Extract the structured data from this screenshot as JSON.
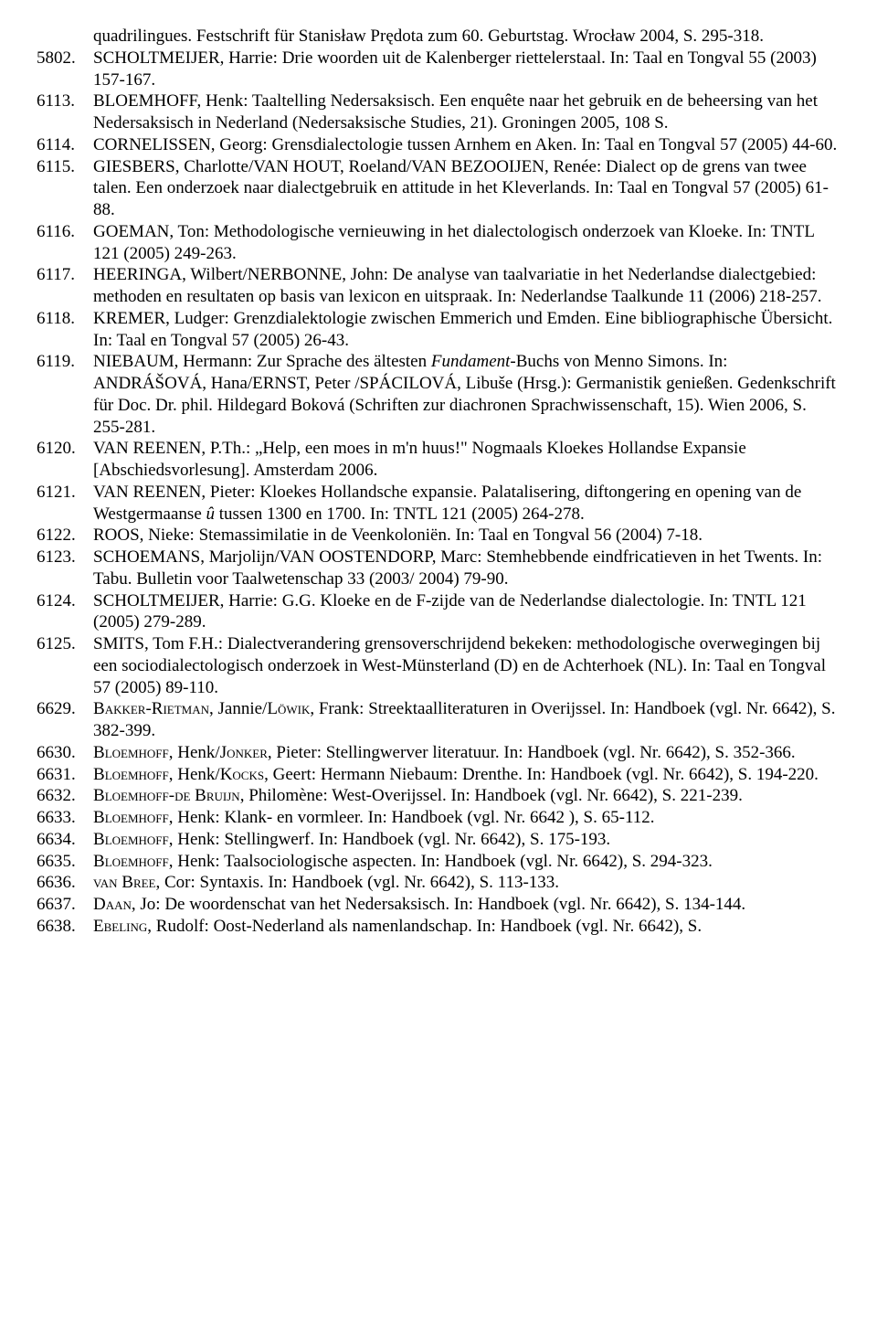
{
  "entries": [
    {
      "num": "",
      "continuation": true,
      "html": "quadrilingues. Festschrift für Stanisław Prędota zum 60. Geburtstag. Wrocław 2004, S. 295-318."
    },
    {
      "num": "5802.",
      "html": "SCHOLTMEIJER, Harrie: Drie woorden uit de Kalenberger riettelerstaal. In: Taal en Tongval 55 (2003) 157-167."
    },
    {
      "num": "6113.",
      "html": "BLOEMHOFF, Henk: Taaltelling Nedersaksisch. Een enquête naar het gebruik en de beheersing van het Nedersaksisch in Nederland (Nedersaksische Studies, 21). Groningen 2005, 108 S."
    },
    {
      "num": "6114.",
      "html": "CORNELISSEN, Georg: Grensdialectologie tussen Arnhem en Aken. In: Taal en Tongval 57 (2005) 44-60."
    },
    {
      "num": "6115.",
      "html": "GIESBERS, Charlotte/VAN HOUT, Roeland/VAN BEZOOIJEN, Renée: Dialect op de grens van twee talen. Een onderzoek naar dialectgebruik en attitude in het Kleverlands. In: Taal en Tongval 57 (2005) 61-88."
    },
    {
      "num": "6116.",
      "html": "GOEMAN, Ton: Methodologische vernieuwing in het dialectologisch onderzoek van Kloeke. In: TNTL 121 (2005) 249-263."
    },
    {
      "num": "6117.",
      "html": "HEERINGA, Wilbert/NERBONNE, John: De analyse van taalvariatie in het Nederlandse dialectgebied: methoden en resultaten op basis van lexicon en uitspraak. In: Nederlandse Taalkunde 11 (2006) 218-257."
    },
    {
      "num": "6118.",
      "html": "KREMER, Ludger: Grenzdialektologie zwischen Emmerich und Emden. Eine bibliographische Übersicht. In: Taal en Tongval 57 (2005) 26-43."
    },
    {
      "num": "6119.",
      "html": "NIEBAUM, Hermann: Zur Sprache des ältesten <span class=\"it\">Fundament</span>-Buchs von Menno Simons. In: ANDRÁŠOVÁ, Hana/ERNST, Peter /SPÁCILOVÁ, Libuše (Hrsg.): Germanistik genießen. Gedenkschrift für Doc. Dr. phil. Hildegard Boková (Schriften zur diachronen Sprachwissenschaft, 15). Wien 2006, S. 255-281."
    },
    {
      "num": "6120.",
      "html": "VAN REENEN, P.Th.: „Help, een moes in m'n huus!\" Nogmaals Kloekes Hollandse Expansie [Abschiedsvorlesung]. Amsterdam 2006."
    },
    {
      "num": "6121.",
      "html": "VAN REENEN, Pieter: Kloekes Hollandsche expansie. Palatalisering, diftongering en opening van de Westgermaanse <span class=\"it\">û</span> tussen 1300 en 1700. In: TNTL 121 (2005) 264-278."
    },
    {
      "num": "6122.",
      "html": "ROOS, Nieke: Stemassimilatie in de Veenkoloniën. In: Taal en Tongval 56 (2004) 7-18."
    },
    {
      "num": "6123.",
      "html": "SCHOEMANS, Marjolijn/VAN OOSTENDORP, Marc: Stemhebbende eindfricatieven in het Twents. In: Tabu. Bulletin voor Taalwetenschap 33 (2003/ 2004) 79-90."
    },
    {
      "num": "6124.",
      "html": "SCHOLTMEIJER, Harrie: G.G. Kloeke en de F-zijde van de Nederlandse dialectologie. In: TNTL 121 (2005) 279-289."
    },
    {
      "num": "6125.",
      "html": "SMITS, Tom F.H.: Dialectverandering grensoverschrijdend bekeken: methodologische overwegingen bij een sociodialectologisch onderzoek in West-Münsterland (D) en de Achterhoek (NL). In: Taal en Tongval 57 (2005) 89-110."
    },
    {
      "num": "6629.",
      "html": "B<span class=\"sc\">akker</span>-R<span class=\"sc\">ietman</span>, Jannie/L<span class=\"sc\">öwik</span>, Frank: Streektaalliteraturen in Overijssel. In: Handboek (vgl. Nr. 6642), S. 382-399."
    },
    {
      "num": "6630.",
      "html": "B<span class=\"sc\">loemhoff</span>, Henk/J<span class=\"sc\">onker</span>, Pieter: Stellingwerver literatuur. In: Handboek (vgl. Nr. 6642), S. 352-366."
    },
    {
      "num": "6631.",
      "html": "B<span class=\"sc\">loemhoff</span>, Henk/K<span class=\"sc\">ocks</span>, Geert: Hermann Niebaum: Drenthe. In: Handboek (vgl. Nr. 6642), S. 194-220."
    },
    {
      "num": "6632.",
      "html": "B<span class=\"sc\">loemhoff-de</span> B<span class=\"sc\">ruijn</span>, Philomène: West-Overijssel. In: Handboek (vgl. Nr. 6642), S. 221-239."
    },
    {
      "num": "6633.",
      "html": "B<span class=\"sc\">loemhoff</span>, Henk: Klank- en vormleer. In: Handboek (vgl. Nr. 6642 ), S. 65-112."
    },
    {
      "num": "6634.",
      "html": "B<span class=\"sc\">loemhoff</span>, Henk: Stellingwerf. In: Handboek (vgl. Nr. 6642), S. 175-193."
    },
    {
      "num": "6635.",
      "html": "B<span class=\"sc\">loemhoff</span>, Henk: Taalsociologische aspecten. In: Handboek (vgl. Nr. 6642), S. 294-323."
    },
    {
      "num": "6636.",
      "html": "<span class=\"sc\">van</span> B<span class=\"sc\">ree</span>, Cor: Syntaxis. In: Handboek (vgl. Nr. 6642), S. 113-133."
    },
    {
      "num": "6637.",
      "html": "D<span class=\"sc\">aan</span>, Jo: De woordenschat van het Nedersaksisch. In: Handboek (vgl. Nr. 6642), S. 134-144."
    },
    {
      "num": "6638.",
      "html": "E<span class=\"sc\">beling</span>, Rudolf: Oost-Nederland als namenlandschap. In: Handboek (vgl. Nr. 6642), S."
    }
  ]
}
